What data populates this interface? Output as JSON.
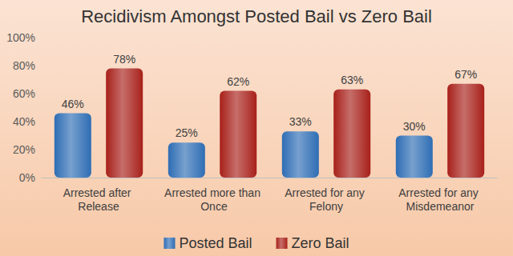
{
  "chart_data": {
    "type": "bar",
    "title": "Recidivism Amongst Posted Bail vs Zero Bail",
    "categories": [
      "Arrested after Release",
      "Arrested more than Once",
      "Arrested for any Felony",
      "Arrested for any Misdemeanor"
    ],
    "series": [
      {
        "name": "Posted Bail",
        "color": "#2e6db4",
        "values": [
          46,
          25,
          33,
          30
        ],
        "value_labels": [
          "46%",
          "25%",
          "33%",
          "30%"
        ]
      },
      {
        "name": "Zero Bail",
        "color": "#a8201a",
        "values": [
          78,
          62,
          63,
          67
        ],
        "value_labels": [
          "78%",
          "62%",
          "63%",
          "67%"
        ]
      }
    ],
    "ylim": [
      0,
      100
    ],
    "yticks": [
      {
        "value": 0,
        "label": "0%"
      },
      {
        "value": 20,
        "label": "20%"
      },
      {
        "value": 40,
        "label": "40%"
      },
      {
        "value": 60,
        "label": "60%"
      },
      {
        "value": 80,
        "label": "80%"
      },
      {
        "value": 100,
        "label": "100%"
      }
    ],
    "grid": false,
    "legend": "bottom",
    "data_labels": true
  }
}
